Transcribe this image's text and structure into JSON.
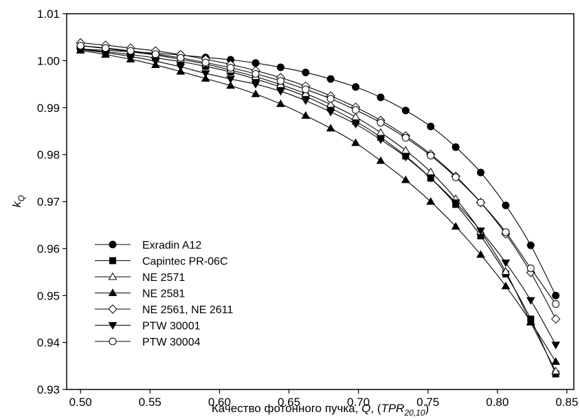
{
  "chart_data": {
    "type": "line",
    "xlabel": {
      "prefix": "Качество фотонного пучка, ",
      "q": "Q",
      "sep": ", (",
      "tpr": "TPR",
      "sub": "20,10",
      "suffix": ")"
    },
    "ylabel": {
      "main": "k",
      "sub": "Q"
    },
    "xlim": [
      0.49,
      0.855
    ],
    "ylim": [
      0.93,
      1.01
    ],
    "xticks": [
      "0.50",
      "0.55",
      "0.60",
      "0.65",
      "0.70",
      "0.75",
      "0.80",
      "0.85"
    ],
    "yticks": [
      "0.93",
      "0.94",
      "0.95",
      "0.96",
      "0.97",
      "0.98",
      "0.99",
      "1.00",
      "1.01"
    ],
    "grid": false,
    "legend_position": "lower-left",
    "x": [
      0.5,
      0.518,
      0.536,
      0.554,
      0.572,
      0.59,
      0.608,
      0.626,
      0.644,
      0.662,
      0.68,
      0.698,
      0.716,
      0.734,
      0.752,
      0.77,
      0.788,
      0.806,
      0.824,
      0.842
    ],
    "series": [
      {
        "name": "Exradin A12",
        "marker": "circle-filled",
        "values": [
          1.0025,
          1.0022,
          1.0019,
          1.0016,
          1.0012,
          1.0007,
          1.0002,
          0.9995,
          0.9986,
          0.9975,
          0.9961,
          0.9944,
          0.9922,
          0.9894,
          0.986,
          0.9816,
          0.9762,
          0.9692,
          0.9607,
          0.95
        ]
      },
      {
        "name": "Capintec PR-06C",
        "marker": "square-filled",
        "values": [
          1.0025,
          1.0019,
          1.0013,
          1.0006,
          0.9998,
          0.9988,
          0.9976,
          0.9961,
          0.9944,
          0.9924,
          0.9899,
          0.9871,
          0.9837,
          0.9797,
          0.975,
          0.9694,
          0.9627,
          0.9546,
          0.945,
          0.9333
        ]
      },
      {
        "name": "NE 2571",
        "marker": "triangle-open",
        "values": [
          1.0032,
          1.0026,
          1.0019,
          1.0012,
          1.0003,
          0.9993,
          0.998,
          0.9966,
          0.9949,
          0.993,
          0.9907,
          0.988,
          0.9847,
          0.9809,
          0.9763,
          0.9706,
          0.9636,
          0.9551,
          0.9443,
          0.9339
        ]
      },
      {
        "name": "NE 2581",
        "marker": "triangle-filled",
        "values": [
          1.0022,
          1.0013,
          1.0003,
          0.9991,
          0.9977,
          0.9962,
          0.9947,
          0.9929,
          0.9908,
          0.9883,
          0.9856,
          0.9825,
          0.9787,
          0.9746,
          0.97,
          0.9647,
          0.9587,
          0.952,
          0.9444,
          0.9359
        ]
      },
      {
        "name": "NE 2561, NE 2611",
        "marker": "diamond-open",
        "values": [
          1.0038,
          1.0033,
          1.0027,
          1.0021,
          1.0013,
          1.0003,
          0.9992,
          0.9979,
          0.9964,
          0.9946,
          0.9925,
          0.9901,
          0.9873,
          0.984,
          0.9801,
          0.9754,
          0.9698,
          0.9631,
          0.9549,
          0.945
        ]
      },
      {
        "name": "PTW 30001",
        "marker": "triangle-down-filled",
        "values": [
          1.0024,
          1.0017,
          1.0009,
          0.9999,
          0.9987,
          0.9973,
          0.9961,
          0.995,
          0.9935,
          0.9915,
          0.9891,
          0.9865,
          0.9832,
          0.9795,
          0.975,
          0.9698,
          0.9638,
          0.957,
          0.949,
          0.9395
        ]
      },
      {
        "name": "PTW 30004",
        "marker": "circle-open",
        "values": [
          1.0032,
          1.0027,
          1.0021,
          1.0014,
          1.0006,
          0.9996,
          0.9985,
          0.9972,
          0.9957,
          0.9939,
          0.9919,
          0.9895,
          0.9868,
          0.9836,
          0.9798,
          0.9752,
          0.9698,
          0.9635,
          0.9558,
          0.9482
        ]
      }
    ]
  }
}
